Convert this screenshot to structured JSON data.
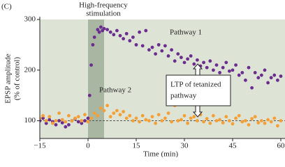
{
  "chart_data": {
    "type": "scatter",
    "panel_label": "(C)",
    "stimulation_label": [
      "High-frequency",
      "stimulation"
    ],
    "highlight_x": [
      0,
      5
    ],
    "ylabel": [
      "EPSP amplitude",
      "(% of control)"
    ],
    "xlabel": "Time (min)",
    "annotation": [
      "LTP of tetanized",
      "pathway"
    ],
    "reference_y": 100,
    "xlim": [
      -15,
      60
    ],
    "ylim": [
      65,
      300
    ],
    "xticks": [
      {
        "value": -15,
        "label": "−15"
      },
      0,
      15,
      30,
      45,
      60
    ],
    "yticks": [
      100,
      200,
      300
    ],
    "series": [
      {
        "name": "Pathway 1",
        "color": "#6a2c8e",
        "x": [
          -15,
          -14,
          -13,
          -12,
          -11,
          -10,
          -9,
          -8,
          -7,
          -6,
          -5,
          -4,
          -3,
          -2,
          -1,
          0,
          0.5,
          1,
          1.5,
          2,
          3,
          3.5,
          4,
          4.5,
          5,
          6,
          7,
          8,
          9,
          10,
          11,
          12,
          13,
          14,
          15,
          16,
          17,
          18,
          19,
          20,
          21,
          22,
          23,
          24,
          25,
          26,
          27,
          28,
          29,
          30,
          31,
          32,
          33,
          34,
          35,
          36,
          37,
          38,
          39,
          40,
          41,
          42,
          43,
          44,
          45,
          46,
          47,
          48,
          49,
          50,
          51,
          52,
          53,
          54,
          55,
          56,
          57,
          58,
          59,
          60
        ],
        "values": [
          100,
          105,
          95,
          102,
          98,
          92,
          100,
          96,
          88,
          92,
          100,
          104,
          98,
          95,
          100,
          105,
          150,
          210,
          250,
          265,
          280,
          275,
          285,
          278,
          282,
          280,
          275,
          270,
          278,
          268,
          262,
          272,
          258,
          265,
          250,
          275,
          248,
          278,
          240,
          245,
          232,
          250,
          238,
          248,
          228,
          240,
          218,
          232,
          225,
          215,
          222,
          228,
          212,
          220,
          208,
          215,
          205,
          218,
          200,
          210,
          195,
          205,
          215,
          198,
          200,
          210,
          190,
          195,
          180,
          205,
          165,
          195,
          185,
          190,
          200,
          175,
          185,
          190,
          180,
          188
        ]
      },
      {
        "name": "Pathway 2",
        "color": "#f4a036",
        "x": [
          -15,
          -14,
          -13,
          -12,
          -11,
          -10,
          -9,
          -8,
          -7,
          -6,
          -5,
          -4,
          -3,
          -2,
          -1,
          0,
          1,
          2,
          3,
          4,
          5,
          6,
          7,
          8,
          9,
          10,
          11,
          12,
          13,
          14,
          15,
          16,
          17,
          18,
          19,
          20,
          21,
          22,
          23,
          24,
          25,
          26,
          27,
          28,
          29,
          30,
          31,
          32,
          33,
          34,
          35,
          36,
          37,
          38,
          39,
          40,
          41,
          42,
          43,
          44,
          45,
          46,
          47,
          48,
          49,
          50,
          51,
          52,
          53,
          54,
          55,
          56,
          57,
          58,
          59,
          60
        ],
        "values": [
          105,
          110,
          100,
          108,
          95,
          100,
          115,
          102,
          98,
          110,
          100,
          105,
          108,
          100,
          112,
          98,
          105,
          115,
          110,
          125,
          120,
          130,
          108,
          115,
          120,
          112,
          118,
          105,
          110,
          100,
          105,
          98,
          110,
          102,
          100,
          108,
          95,
          112,
          100,
          105,
          115,
          98,
          130,
          100,
          102,
          110,
          95,
          105,
          108,
          100,
          112,
          98,
          104,
          95,
          110,
          100,
          102,
          96,
          108,
          100,
          94,
          105,
          110,
          98,
          100,
          92,
          104,
          108,
          96,
          100,
          95,
          102,
          98,
          105,
          90,
          100
        ]
      }
    ]
  }
}
